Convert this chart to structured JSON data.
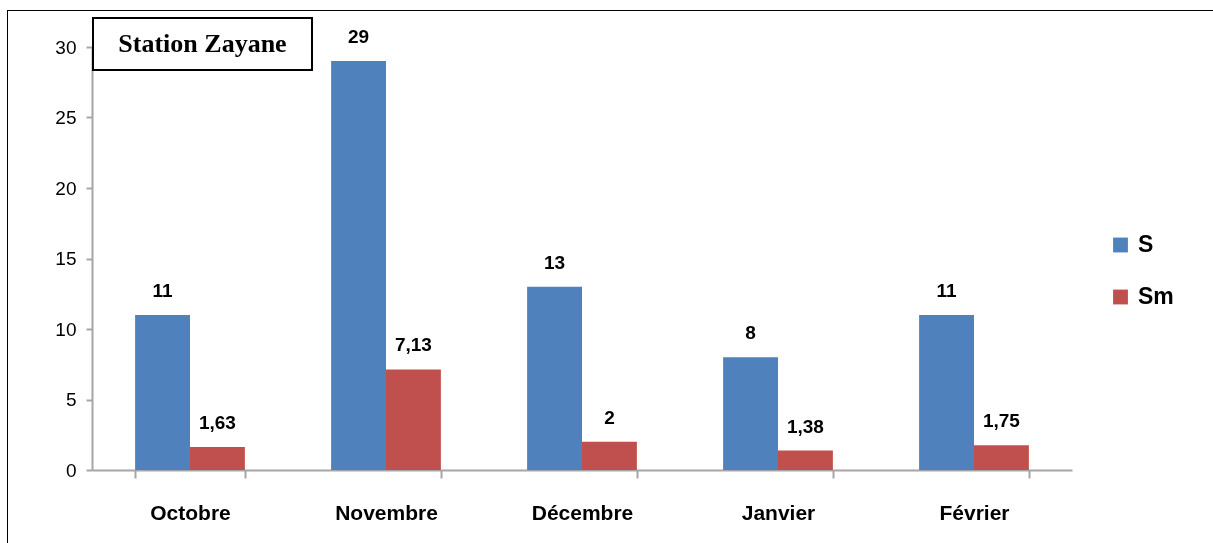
{
  "chart_data": {
    "type": "bar",
    "title": "Station Zayane",
    "categories": [
      "Octobre",
      "Novembre",
      "Décembre",
      "Janvier",
      "Février"
    ],
    "series": [
      {
        "name": "S",
        "color": "#4f81bd",
        "values": [
          11,
          29,
          13,
          8,
          11
        ],
        "value_labels": [
          "11",
          "29",
          "13",
          "8",
          "11"
        ]
      },
      {
        "name": "Sm",
        "color": "#c0504d",
        "values": [
          1.63,
          7.13,
          2,
          1.38,
          1.75
        ],
        "value_labels": [
          "1,63",
          "7,13",
          "2",
          "1,38",
          "1,75"
        ]
      }
    ],
    "ylim": [
      0,
      30
    ],
    "yticks": [
      0,
      5,
      10,
      15,
      20,
      25,
      30
    ],
    "legend": "right"
  }
}
